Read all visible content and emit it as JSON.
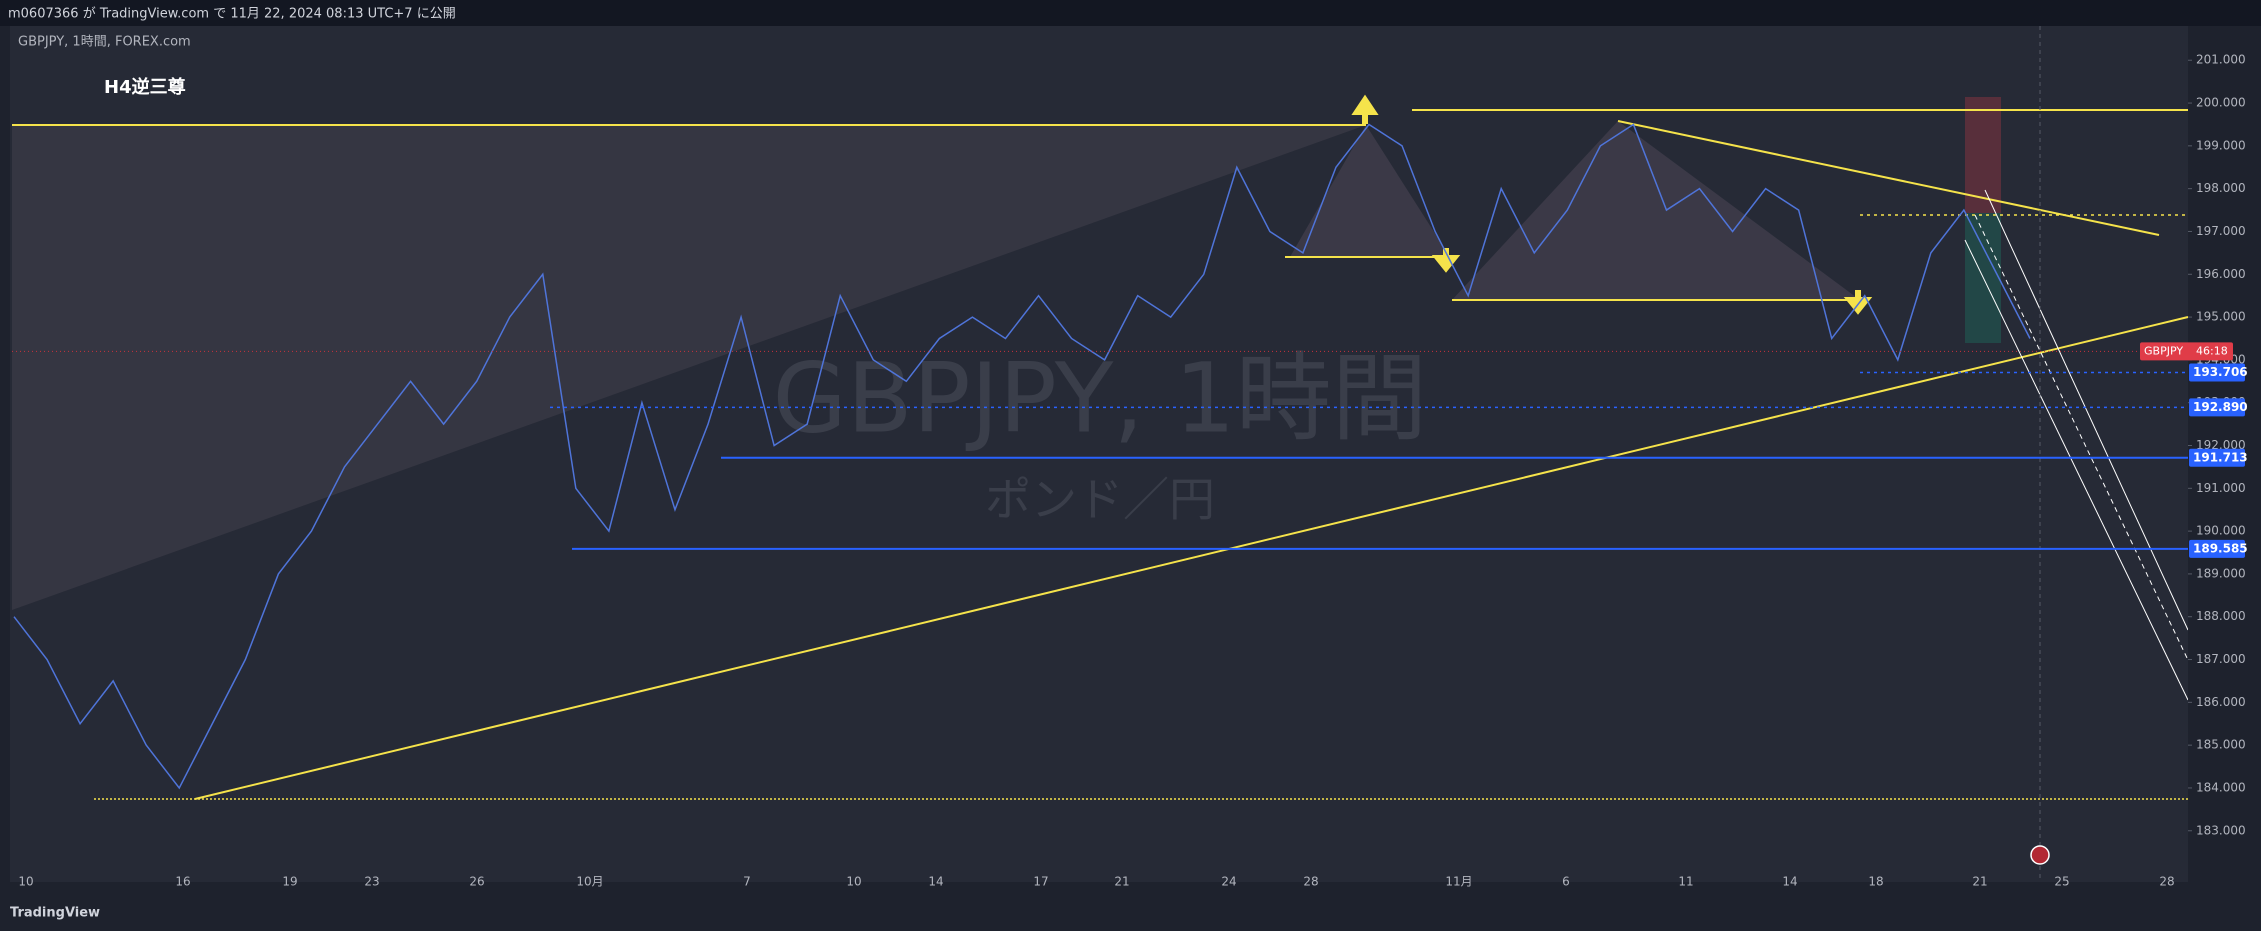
{
  "header": {
    "published": "m0607366 が TradingView.com で 11月 22, 2024 08:13 UTC+7 に公開",
    "symbol_line": "GBPJPY, 1時間, FOREX.com"
  },
  "chart_data": {
    "type": "line",
    "annotation": "H4逆三尊",
    "watermark": "GBPJPY, 1時間",
    "watermark_sub": "ポンド／円",
    "color": "#4f74d9",
    "values": [
      188.0,
      187.0,
      185.5,
      186.5,
      185.0,
      184.0,
      185.5,
      187.0,
      189.0,
      190.0,
      191.5,
      192.5,
      193.5,
      192.5,
      193.5,
      195.0,
      196.0,
      191.0,
      190.0,
      193.0,
      190.5,
      192.5,
      195.0,
      192.0,
      192.5,
      195.5,
      194.0,
      193.5,
      194.5,
      195.0,
      194.5,
      195.5,
      194.5,
      194.0,
      195.5,
      195.0,
      196.0,
      198.5,
      197.0,
      196.5,
      198.5,
      199.5,
      199.0,
      197.0,
      195.5,
      198.0,
      196.5,
      197.5,
      199.0,
      199.5,
      197.5,
      198.0,
      197.0,
      198.0,
      197.5,
      194.5,
      195.5,
      194.0,
      196.5,
      197.5,
      196.0,
      194.5
    ],
    "ylim": [
      182.2,
      201.8
    ],
    "yticks": [
      {
        "value": 183,
        "label": "183.000"
      },
      {
        "value": 184,
        "label": "184.000"
      },
      {
        "value": 185,
        "label": "185.000"
      },
      {
        "value": 186,
        "label": "186.000"
      },
      {
        "value": 187,
        "label": "187.000"
      },
      {
        "value": 188,
        "label": "188.000"
      },
      {
        "value": 189,
        "label": "189.000"
      },
      {
        "value": 190,
        "label": "190.000"
      },
      {
        "value": 191,
        "label": "191.000"
      },
      {
        "value": 192,
        "label": "192.000"
      },
      {
        "value": 193,
        "label": "193.000"
      },
      {
        "value": 194,
        "label": "194.000"
      },
      {
        "value": 195,
        "label": "195.000"
      },
      {
        "value": 196,
        "label": "196.000"
      },
      {
        "value": 197,
        "label": "197.000"
      },
      {
        "value": 198,
        "label": "198.000"
      },
      {
        "value": 199,
        "label": "199.000"
      },
      {
        "value": 200,
        "label": "200.000"
      },
      {
        "value": 201,
        "label": "201.000"
      }
    ],
    "x_labels": [
      "10",
      "16",
      "19",
      "23",
      "26",
      "10月",
      "7",
      "10",
      "14",
      "17",
      "21",
      "24",
      "28",
      "11月",
      "6",
      "11",
      "14",
      "18",
      "21",
      "25",
      "28"
    ],
    "levels": [
      {
        "value": 193.706,
        "label": "193.706"
      },
      {
        "value": 192.89,
        "label": "192.890"
      },
      {
        "value": 191.713,
        "label": "191.713"
      },
      {
        "value": 189.585,
        "label": "189.585"
      }
    ],
    "price_tag": {
      "value": 194.2,
      "symbol": "GBPJPY",
      "countdown": "46:18"
    }
  },
  "footer": {
    "brand": "TradingView"
  }
}
